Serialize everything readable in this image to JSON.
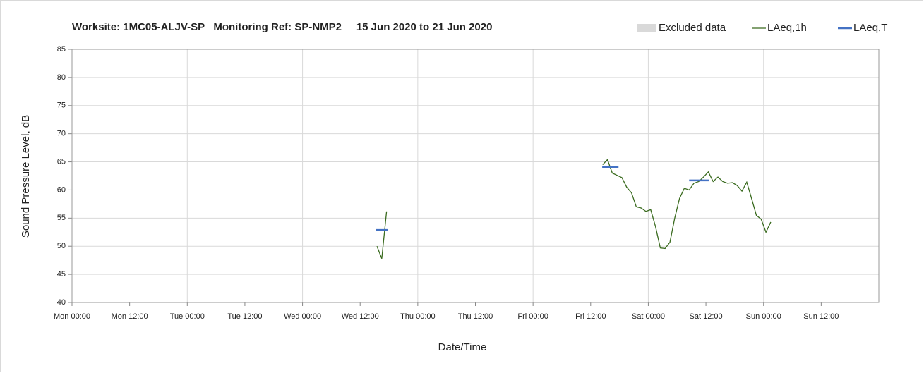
{
  "chart_data": {
    "type": "line",
    "title": "Worksite: 1MC05-ALJV-SP   Monitoring Ref: SP-NMP2     15 Jun 2020 to 21 Jun 2020",
    "x_label": "Date/Time",
    "y_label": "Sound Pressure Level, dB",
    "xlim": [
      0,
      168
    ],
    "ylim": [
      40,
      85
    ],
    "yticks": [
      40,
      45,
      50,
      55,
      60,
      65,
      70,
      75,
      80,
      85
    ],
    "xticks": [
      {
        "value": 0,
        "label": "Mon 00:00"
      },
      {
        "value": 12,
        "label": "Mon 12:00"
      },
      {
        "value": 24,
        "label": "Tue 00:00"
      },
      {
        "value": 36,
        "label": "Tue 12:00"
      },
      {
        "value": 48,
        "label": "Wed 00:00"
      },
      {
        "value": 60,
        "label": "Wed 12:00"
      },
      {
        "value": 72,
        "label": "Thu 00:00"
      },
      {
        "value": 84,
        "label": "Thu 12:00"
      },
      {
        "value": 96,
        "label": "Fri 00:00"
      },
      {
        "value": 108,
        "label": "Fri 12:00"
      },
      {
        "value": 120,
        "label": "Sat 00:00"
      },
      {
        "value": 132,
        "label": "Sat 12:00"
      },
      {
        "value": 144,
        "label": "Sun 00:00"
      },
      {
        "value": 156,
        "label": "Sun 12:00"
      }
    ],
    "grid": true,
    "legend": "top-right",
    "series": [
      {
        "name": "Excluded data",
        "color": "#d9d9d9",
        "kind": "area",
        "x": [],
        "values": []
      },
      {
        "name": "LAeq,1h",
        "color": "#3a6b1f",
        "kind": "line",
        "x": [
          63.5,
          64.5,
          65.5,
          null,
          110.5,
          111.5,
          112.5,
          113.5,
          114.5,
          115.5,
          116.5,
          117.5,
          118.5,
          119.5,
          120.5,
          121.5,
          122.5,
          123.5,
          124.5,
          125.5,
          126.5,
          127.5,
          128.5,
          129.5,
          130.5,
          131.5,
          132.5,
          133.5,
          134.5,
          135.5,
          136.5,
          137.5,
          138.5,
          139.5,
          140.5,
          141.5,
          142.5,
          143.5,
          144.5,
          145.5
        ],
        "values": [
          50,
          47.8,
          56.2,
          null,
          64.5,
          65.4,
          63,
          62.6,
          62.2,
          60.5,
          59.5,
          57,
          56.8,
          56.2,
          56.5,
          53.5,
          49.7,
          49.6,
          50.7,
          55,
          58.5,
          60.3,
          60,
          61.2,
          61.5,
          62.3,
          63.2,
          61.5,
          62.3,
          61.5,
          61.2,
          61.3,
          60.8,
          59.8,
          61.4,
          58.5,
          55.5,
          54.8,
          52.5,
          54.3
        ]
      },
      {
        "name": "LAeq,T",
        "color": "#4472c4",
        "kind": "step",
        "x": [
          63.3,
          65.7,
          null,
          110.4,
          113.8,
          null,
          128.5,
          132.6
        ],
        "values": [
          52.9,
          52.9,
          null,
          64.1,
          64.1,
          null,
          61.7,
          61.7
        ]
      }
    ]
  }
}
